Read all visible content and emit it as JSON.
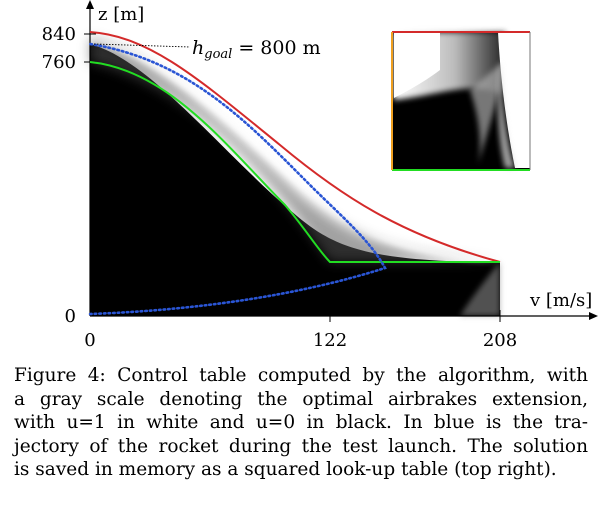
{
  "figure": {
    "axes": {
      "y_label": "z [m]",
      "x_label": "v [m/s]",
      "y_ticks": [
        "840",
        "760",
        "0"
      ],
      "x_ticks": [
        "0",
        "122",
        "208"
      ]
    },
    "annotation": {
      "symbol": "h",
      "subscript": "goal",
      "rest": " = 800 m"
    },
    "colors": {
      "envelope": "#d42a2a",
      "inner_bound": "#22dd22",
      "trajectory": "#2a55d4",
      "inset_left_edge": "#f0a020"
    }
  },
  "caption": {
    "lines": [
      "Figure 4: Control table computed by the algorithm, with",
      "a gray scale denoting the optimal airbrakes extension,",
      "with u=1 in white and u=0 in black. In blue is the tra-",
      "jectory of the rocket during the test launch. The solution",
      "is saved in memory as a squared look-up table (top right)."
    ]
  }
}
